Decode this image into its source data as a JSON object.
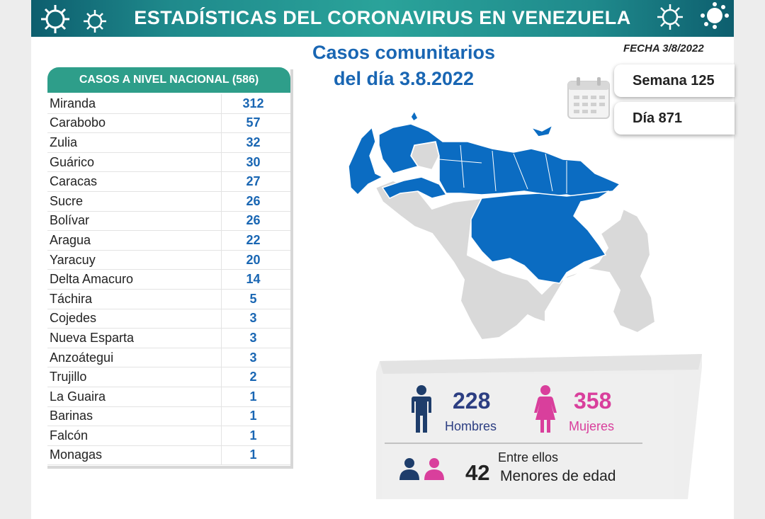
{
  "header": {
    "title": "ESTADÍSTICAS DEL CORONAVIRUS EN VENEZUELA"
  },
  "fecha": "FECHA 3/8/2022",
  "casos_title_line1": "Casos comunitarios",
  "casos_title_line2": "del día 3.8.2022",
  "table": {
    "title": "CASOS A NIVEL NACIONAL (586)",
    "rows": [
      {
        "name": "Miranda",
        "value": "312"
      },
      {
        "name": "Carabobo",
        "value": "57"
      },
      {
        "name": "Zulia",
        "value": "32"
      },
      {
        "name": "Guárico",
        "value": "30"
      },
      {
        "name": "Caracas",
        "value": "27"
      },
      {
        "name": "Sucre",
        "value": "26"
      },
      {
        "name": "Bolívar",
        "value": "26"
      },
      {
        "name": "Aragua",
        "value": "22"
      },
      {
        "name": "Yaracuy",
        "value": "20"
      },
      {
        "name": "Delta Amacuro",
        "value": "14"
      },
      {
        "name": "Táchira",
        "value": "5"
      },
      {
        "name": "Cojedes",
        "value": "3"
      },
      {
        "name": "Nueva Esparta",
        "value": "3"
      },
      {
        "name": "Anzoátegui",
        "value": "3"
      },
      {
        "name": "Trujillo",
        "value": "2"
      },
      {
        "name": "La Guaira",
        "value": "1"
      },
      {
        "name": "Barinas",
        "value": "1"
      },
      {
        "name": "Falcón",
        "value": "1"
      },
      {
        "name": "Monagas",
        "value": "1"
      }
    ]
  },
  "semana": "Semana 125",
  "dia": "Día 871",
  "stats": {
    "hombres_count": "228",
    "hombres_label": "Hombres",
    "mujeres_count": "358",
    "mujeres_label": "Mujeres",
    "entre_ellos": "Entre ellos",
    "menores_count": "42",
    "menores_label": "Menores de edad"
  },
  "colors": {
    "accent_blue": "#1966b3",
    "header_teal": "#2e9e8a",
    "map_blue": "#0b6cc2",
    "map_grey": "#d9d9d9",
    "male_blue": "#1e3d6b",
    "female_pink": "#d93f9c"
  },
  "icons": [
    "virus-icon",
    "calendar-icon",
    "male-icon",
    "female-icon",
    "child-boy-icon",
    "child-girl-icon"
  ]
}
